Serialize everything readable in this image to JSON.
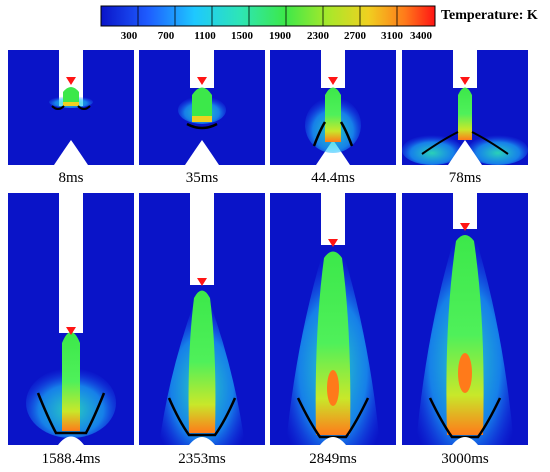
{
  "colorbar": {
    "title": "Temperature: K",
    "ticks": [
      "300",
      "700",
      "1100",
      "1500",
      "1900",
      "2300",
      "2700",
      "3100",
      "3400"
    ],
    "gradient": [
      "#0a14c8",
      "#1e5cff",
      "#1ec8ff",
      "#2ee6b4",
      "#3ce84a",
      "#a8e82a",
      "#f0d020",
      "#ff7a1a",
      "#ff1414"
    ]
  },
  "panels": [
    {
      "label": "8ms",
      "time_ms": 8,
      "stage": "early"
    },
    {
      "label": "35ms",
      "time_ms": 35,
      "stage": "early"
    },
    {
      "label": "44.4ms",
      "time_ms": 44.4,
      "stage": "early"
    },
    {
      "label": "78ms",
      "time_ms": 78,
      "stage": "early"
    },
    {
      "label": "1588.4ms",
      "time_ms": 1588.4,
      "stage": "late"
    },
    {
      "label": "2353ms",
      "time_ms": 2353,
      "stage": "late"
    },
    {
      "label": "2849ms",
      "time_ms": 2849,
      "stage": "late"
    },
    {
      "label": "3000ms",
      "time_ms": 3000,
      "stage": "late"
    }
  ]
}
